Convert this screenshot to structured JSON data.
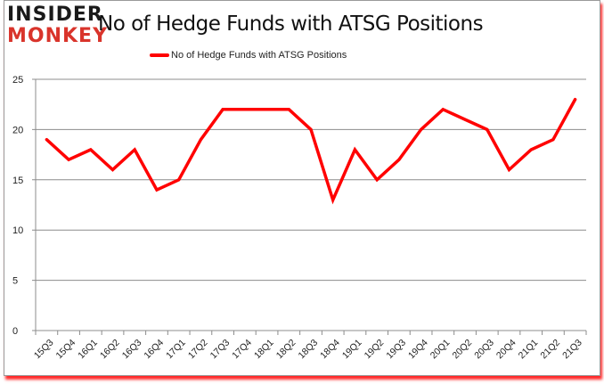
{
  "logo": {
    "line1": "INSIDER",
    "line2": "MONKEY"
  },
  "header": {
    "title": "No of Hedge Funds with ATSG Positions"
  },
  "legend": {
    "label": "No of Hedge Funds with ATSG Positions",
    "color": "#ff0000"
  },
  "chart_data": {
    "type": "line",
    "title": "No of Hedge Funds with ATSG Positions",
    "xlabel": "",
    "ylabel": "",
    "ylim": [
      0,
      25
    ],
    "yticks": [
      0,
      5,
      10,
      15,
      20,
      25
    ],
    "grid": true,
    "legend_position": "top",
    "categories": [
      "15Q3",
      "15Q4",
      "16Q1",
      "16Q2",
      "16Q3",
      "16Q4",
      "17Q1",
      "17Q2",
      "17Q3",
      "17Q4",
      "18Q1",
      "18Q2",
      "18Q3",
      "18Q4",
      "19Q1",
      "19Q2",
      "19Q3",
      "19Q4",
      "20Q1",
      "20Q2",
      "20Q3",
      "20Q4",
      "21Q1",
      "21Q2",
      "21Q3"
    ],
    "series": [
      {
        "name": "No of Hedge Funds with ATSG Positions",
        "color": "#ff0000",
        "values": [
          19,
          17,
          18,
          16,
          18,
          14,
          15,
          19,
          22,
          22,
          22,
          22,
          20,
          13,
          18,
          15,
          17,
          20,
          22,
          21,
          20,
          16,
          18,
          19,
          23
        ]
      }
    ]
  }
}
